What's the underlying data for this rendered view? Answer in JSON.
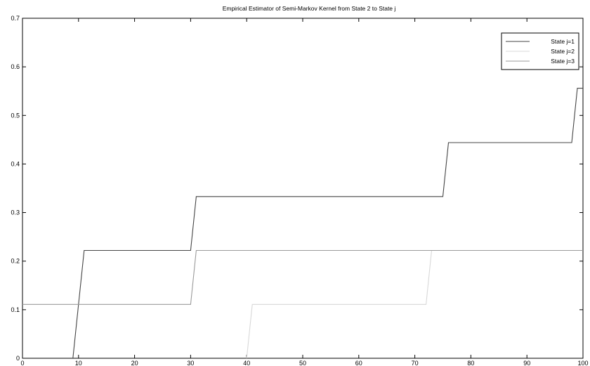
{
  "chart_data": {
    "type": "line",
    "title": "Empirical Estimator of Semi-Markov Kernel from State 2 to State j",
    "xlabel": "",
    "ylabel": "",
    "xlim": [
      0,
      100
    ],
    "ylim": [
      0,
      0.7
    ],
    "xticks": [
      "0",
      "10",
      "20",
      "30",
      "40",
      "50",
      "60",
      "70",
      "80",
      "90",
      "100"
    ],
    "yticks": [
      "0",
      "0.1",
      "0.2",
      "0.3",
      "0.4",
      "0.5",
      "0.6",
      "0.7"
    ],
    "grid": false,
    "legend_position": "top-right",
    "series": [
      {
        "name": "State j=1",
        "color": "#444444",
        "points": [
          [
            9,
            0
          ],
          [
            11,
            0.222
          ],
          [
            30,
            0.222
          ],
          [
            31,
            0.333
          ],
          [
            75,
            0.333
          ],
          [
            76,
            0.444
          ],
          [
            98,
            0.444
          ],
          [
            99,
            0.556
          ],
          [
            100,
            0.556
          ]
        ]
      },
      {
        "name": "State j=2",
        "color": "#d8d8d8",
        "points": [
          [
            40,
            0
          ],
          [
            41,
            0.111
          ],
          [
            72,
            0.111
          ],
          [
            73,
            0.222
          ],
          [
            100,
            0.222
          ]
        ]
      },
      {
        "name": "State j=3",
        "color": "#9a9a9a",
        "points": [
          [
            0,
            0.111
          ],
          [
            30,
            0.111
          ],
          [
            31,
            0.222
          ],
          [
            100,
            0.222
          ]
        ]
      }
    ]
  }
}
